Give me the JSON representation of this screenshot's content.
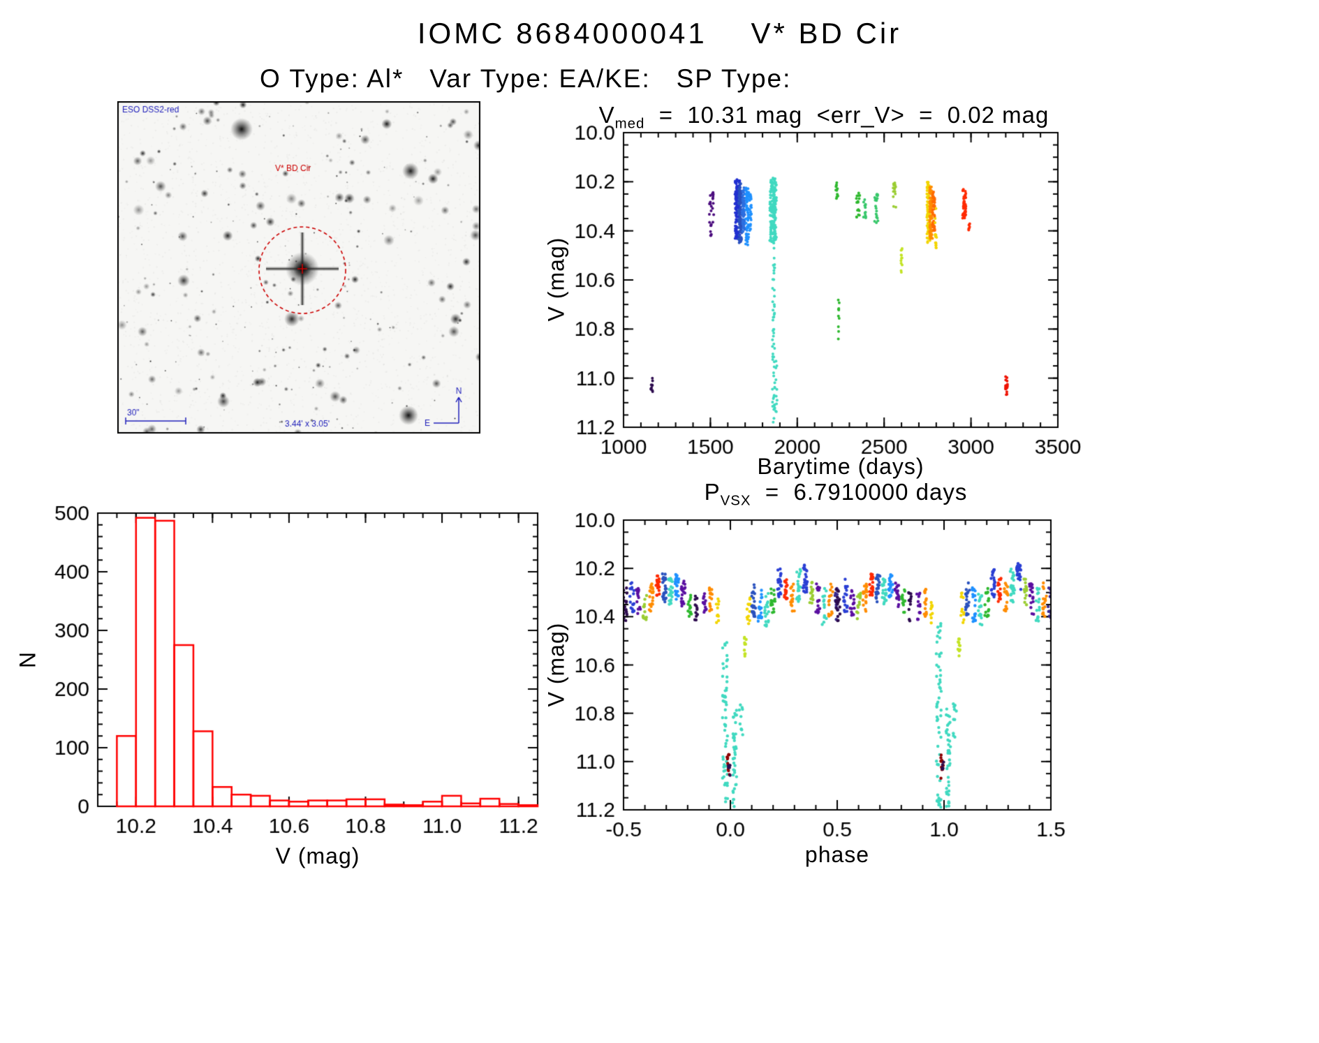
{
  "page": {
    "title": "IOMC 8684000041    V* BD Cir",
    "subtitle": "O Type: Al*   Var Type: EA/KE:   SP Type:"
  },
  "finding_chart": {
    "survey_label": "ESO DSS2-red",
    "target_label": "V* BD Cir",
    "scale_label": "30\"",
    "fov_label": "3.44' x 3.05'",
    "compass_north": "N",
    "compass_east": "E",
    "marker_color": "#cc0000",
    "annotation_color": "#2222bb"
  },
  "chart_data": [
    {
      "id": "lightcurve",
      "type": "scatter",
      "title": {
        "base": "V",
        "sub": "med",
        "rest": "  =  10.31 mag  <err_V>  =  0.02 mag"
      },
      "xlabel": "Barytime (days)",
      "ylabel": "V (mag)",
      "xlim": [
        1000,
        3500
      ],
      "ylim": [
        10.0,
        11.2
      ],
      "y_inverted": true,
      "grid": false,
      "xticks": {
        "values": [
          1000,
          1500,
          2000,
          2500,
          3000,
          3500
        ],
        "labels": [
          "1000",
          "1500",
          "2000",
          "2500",
          "3000",
          "3500"
        ],
        "minor": 100
      },
      "yticks": {
        "values": [
          10.0,
          10.2,
          10.4,
          10.6,
          10.8,
          11.0,
          11.2
        ],
        "labels": [
          "10.0",
          "10.2",
          "10.4",
          "10.6",
          "10.8",
          "11.0",
          "11.2"
        ],
        "minor": 0.05
      },
      "clusters": [
        [
          1160,
          8,
          11.0,
          11.07,
          10,
          "#2d0b4e"
        ],
        [
          1500,
          6,
          10.23,
          10.42,
          16,
          "#4b0c7e"
        ],
        [
          1516,
          5,
          10.24,
          10.38,
          12,
          "#4b0c7e"
        ],
        [
          1655,
          14,
          10.19,
          10.44,
          120,
          "#2130d0"
        ],
        [
          1672,
          10,
          10.2,
          10.45,
          90,
          "#2a52be"
        ],
        [
          1690,
          8,
          10.22,
          10.42,
          60,
          "#2d6fe0"
        ],
        [
          1712,
          9,
          10.22,
          10.46,
          60,
          "#1e90ff"
        ],
        [
          1730,
          6,
          10.25,
          10.4,
          25,
          "#1e90ff"
        ],
        [
          1858,
          16,
          10.18,
          10.45,
          130,
          "#40d9c0"
        ],
        [
          1872,
          8,
          10.2,
          10.44,
          60,
          "#40d9c0"
        ],
        [
          1864,
          7,
          10.45,
          11.19,
          55,
          "#40d9c0"
        ],
        [
          1880,
          5,
          10.9,
          11.15,
          10,
          "#40d9c0"
        ],
        [
          2228,
          6,
          10.2,
          10.3,
          12,
          "#2eb82e"
        ],
        [
          2240,
          4,
          10.68,
          10.88,
          10,
          "#2eb82e"
        ],
        [
          2350,
          10,
          10.24,
          10.36,
          16,
          "#2eb82e"
        ],
        [
          2388,
          7,
          10.26,
          10.36,
          12,
          "#37c76a"
        ],
        [
          2455,
          10,
          10.25,
          10.38,
          20,
          "#37c76a"
        ],
        [
          2560,
          8,
          10.19,
          10.31,
          14,
          "#9acd32"
        ],
        [
          2600,
          4,
          10.47,
          10.57,
          12,
          "#c3e324"
        ],
        [
          2755,
          9,
          10.2,
          10.46,
          70,
          "#f2d500"
        ],
        [
          2770,
          9,
          10.22,
          10.44,
          80,
          "#ff8c00"
        ],
        [
          2785,
          7,
          10.24,
          10.4,
          40,
          "#ff6a00"
        ],
        [
          2798,
          5,
          10.3,
          10.47,
          15,
          "#f2d500"
        ],
        [
          2962,
          10,
          10.23,
          10.35,
          45,
          "#ff2a00"
        ],
        [
          2990,
          4,
          10.37,
          10.42,
          6,
          "#ff2a00"
        ],
        [
          3205,
          6,
          10.99,
          11.08,
          18,
          "#ee1100"
        ]
      ]
    },
    {
      "id": "histogram",
      "type": "bar",
      "xlabel": "V (mag)",
      "ylabel": "N",
      "xlim": [
        10.1,
        11.25
      ],
      "ylim": [
        0,
        500
      ],
      "bar_color": "#ff0000",
      "grid": false,
      "xticks": {
        "values": [
          10.2,
          10.4,
          10.6,
          10.8,
          11.0,
          11.2
        ],
        "labels": [
          "10.2",
          "10.4",
          "10.6",
          "10.8",
          "11.0",
          "11.2"
        ],
        "minor": 0.05
      },
      "yticks": {
        "values": [
          0,
          100,
          200,
          300,
          400,
          500
        ],
        "labels": [
          "0",
          "100",
          "200",
          "300",
          "400",
          "500"
        ],
        "minor": 20
      },
      "bins": {
        "start": 10.15,
        "width": 0.05,
        "counts": [
          120,
          492,
          487,
          275,
          128,
          33,
          20,
          18,
          10,
          8,
          10,
          10,
          12,
          12,
          3,
          2,
          8,
          18,
          5,
          13,
          4,
          2
        ]
      }
    },
    {
      "id": "phase",
      "type": "scatter",
      "title": {
        "base": "P",
        "sub": "VSX",
        "rest": "  =  6.7910000 days"
      },
      "xlabel": "phase",
      "ylabel": "V (mag)",
      "xlim": [
        -0.5,
        1.5
      ],
      "ylim": [
        10.0,
        11.2
      ],
      "y_inverted": true,
      "grid": false,
      "period_days": 6.791,
      "repeat_offset": 1.0,
      "xticks": {
        "values": [
          -0.5,
          0.0,
          0.5,
          1.0,
          1.5
        ],
        "labels": [
          "-0.5",
          "0.0",
          "0.5",
          "1.0",
          "1.5"
        ],
        "minor": 0.1
      },
      "yticks": {
        "values": [
          10.0,
          10.2,
          10.4,
          10.6,
          10.8,
          11.0,
          11.2
        ],
        "labels": [
          "10.0",
          "10.2",
          "10.4",
          "10.6",
          "10.8",
          "11.0",
          "11.2"
        ],
        "minor": 0.05
      },
      "clusters": [
        [
          -0.495,
          0.012,
          10.28,
          10.42,
          18,
          "#2d0b4e"
        ],
        [
          -0.46,
          0.01,
          10.24,
          10.38,
          18,
          "#2a3fd4"
        ],
        [
          -0.43,
          0.01,
          10.28,
          10.4,
          16,
          "#5a0fa0"
        ],
        [
          -0.4,
          0.01,
          10.3,
          10.42,
          14,
          "#9acd32"
        ],
        [
          -0.37,
          0.01,
          10.26,
          10.38,
          20,
          "#ff8c00"
        ],
        [
          -0.34,
          0.008,
          10.22,
          10.32,
          22,
          "#ff2a00"
        ],
        [
          -0.31,
          0.01,
          10.22,
          10.34,
          24,
          "#2a52be"
        ],
        [
          -0.28,
          0.01,
          10.24,
          10.35,
          20,
          "#40d9c0"
        ],
        [
          -0.25,
          0.01,
          10.22,
          10.33,
          22,
          "#1e90ff"
        ],
        [
          -0.22,
          0.01,
          10.25,
          10.36,
          18,
          "#5a0fa0"
        ],
        [
          -0.19,
          0.008,
          10.28,
          10.4,
          14,
          "#2eb82e"
        ],
        [
          -0.16,
          0.008,
          10.3,
          10.42,
          12,
          "#2d0b4e"
        ],
        [
          -0.12,
          0.008,
          10.3,
          10.42,
          14,
          "#5a0fa0"
        ],
        [
          -0.09,
          0.008,
          10.28,
          10.4,
          16,
          "#ff8c00"
        ],
        [
          -0.06,
          0.006,
          10.32,
          10.44,
          10,
          "#f2d500"
        ],
        [
          -0.025,
          0.012,
          10.42,
          11.19,
          55,
          "#40d9c0"
        ],
        [
          -0.01,
          0.006,
          10.97,
          11.07,
          12,
          "#8b0000"
        ],
        [
          -0.005,
          0.004,
          11.0,
          11.06,
          6,
          "#2d0b4e"
        ],
        [
          0.02,
          0.01,
          10.78,
          11.19,
          40,
          "#40d9c0"
        ],
        [
          0.05,
          0.008,
          10.76,
          10.9,
          10,
          "#40d9c0"
        ],
        [
          0.07,
          0.005,
          10.48,
          10.57,
          10,
          "#c3e324"
        ],
        [
          0.085,
          0.008,
          10.3,
          10.43,
          12,
          "#f2d500"
        ],
        [
          0.11,
          0.01,
          10.26,
          10.4,
          22,
          "#2a52be"
        ],
        [
          0.14,
          0.01,
          10.28,
          10.42,
          20,
          "#1e90ff"
        ],
        [
          0.17,
          0.01,
          10.3,
          10.44,
          18,
          "#40d9c0"
        ],
        [
          0.2,
          0.01,
          10.28,
          10.4,
          16,
          "#2eb82e"
        ],
        [
          0.23,
          0.01,
          10.2,
          10.32,
          24,
          "#2a3fd4"
        ],
        [
          0.26,
          0.008,
          10.24,
          10.34,
          18,
          "#ff2a00"
        ],
        [
          0.29,
          0.01,
          10.26,
          10.38,
          16,
          "#ff8c00"
        ],
        [
          0.32,
          0.01,
          10.2,
          10.34,
          22,
          "#40d9c0"
        ],
        [
          0.35,
          0.01,
          10.18,
          10.3,
          24,
          "#2a3fd4"
        ],
        [
          0.38,
          0.008,
          10.24,
          10.36,
          14,
          "#9acd32"
        ],
        [
          0.41,
          0.01,
          10.26,
          10.4,
          18,
          "#5a0fa0"
        ],
        [
          0.44,
          0.01,
          10.28,
          10.44,
          16,
          "#40d9c0"
        ],
        [
          0.47,
          0.01,
          10.26,
          10.4,
          16,
          "#ff8c00"
        ],
        [
          0.495,
          0.01,
          10.28,
          10.42,
          14,
          "#3b2a8f"
        ]
      ]
    }
  ]
}
